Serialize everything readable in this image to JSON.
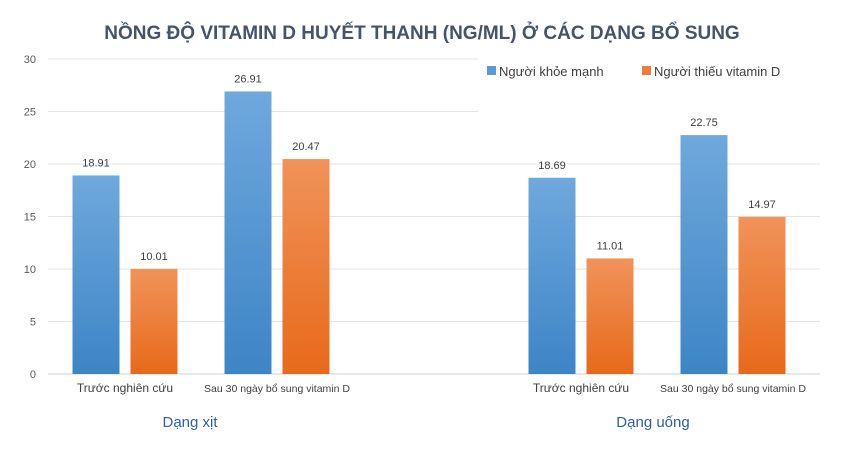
{
  "chart_data": {
    "type": "bar",
    "title": "NỒNG ĐỘ VITAMIN D HUYẾT THANH (NG/ML) Ở CÁC DẠNG BỔ SUNG",
    "categories": [
      "Trước nghiên cứu",
      "Sau 30 ngày bổ sung vitamin D",
      "Trước nghiên cứu",
      "Sau 30 ngày bổ sung vitamin D"
    ],
    "groups": [
      "Dạng xịt",
      "Dạng uống"
    ],
    "series": [
      {
        "name": "Người khỏe mạnh",
        "color": "#5b9bd5",
        "values": [
          18.91,
          26.91,
          18.69,
          22.75
        ],
        "labels": [
          "18.91",
          "26.91",
          "18.69",
          "22.75"
        ]
      },
      {
        "name": "Người thiếu vitamin D",
        "color": "#ed7d31",
        "values": [
          10.01,
          20.47,
          11.01,
          14.97
        ],
        "labels": [
          "10.01",
          "20.47",
          "11.01",
          "14.97"
        ]
      }
    ],
    "ylim": [
      0,
      30
    ],
    "yticks": [
      "0",
      "5",
      "10",
      "15",
      "20",
      "25",
      "30"
    ],
    "grid": true,
    "legend": "top-right",
    "group_label_color": "#2e5fa8"
  }
}
